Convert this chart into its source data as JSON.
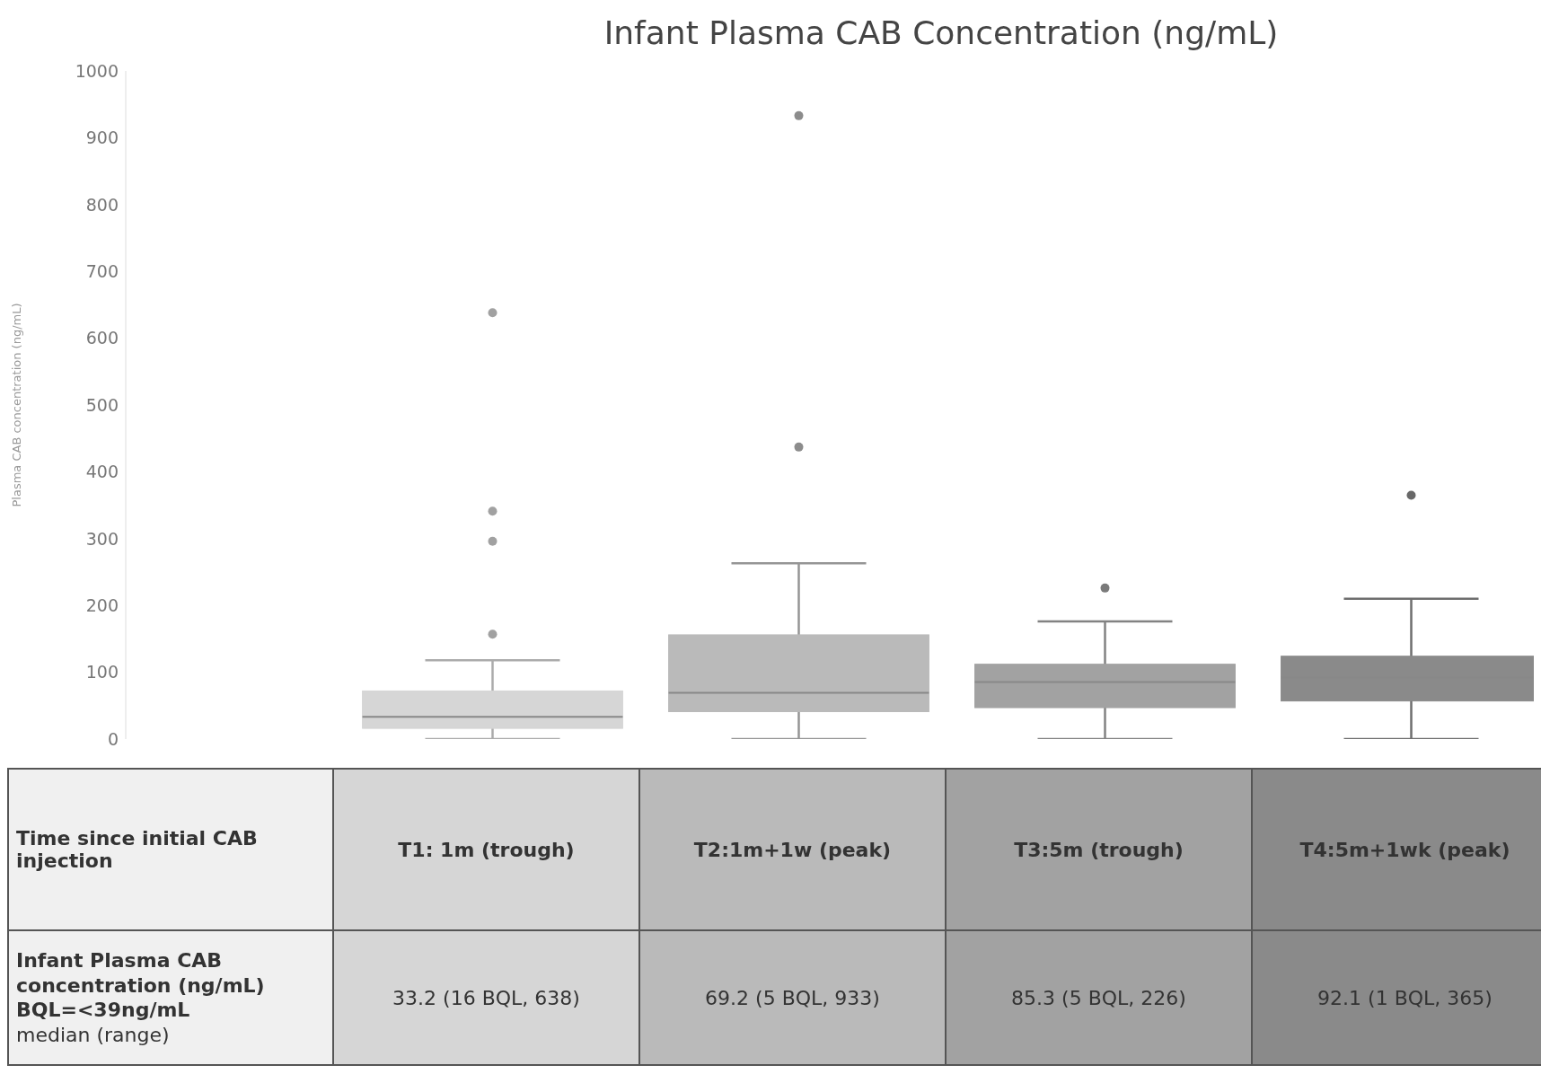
{
  "chart_data": {
    "type": "box",
    "title": "Infant Plasma CAB Concentration (ng/mL)",
    "ylabel": "Plasma CAB concentration (ng/mL)",
    "xlabel": "Time since initial CAB injection",
    "categories": [
      "T1: 1m (trough)",
      "T2:1m+1w (peak)",
      "T3:5m (trough)",
      "T4:5m+1wk (peak)"
    ],
    "boxes": [
      {
        "low": 0,
        "q1": 16,
        "median": 33.2,
        "q3": 72,
        "high": 118,
        "outliers": [
          157,
          296,
          341,
          638
        ]
      },
      {
        "low": 0,
        "q1": 41,
        "median": 69.2,
        "q3": 156,
        "high": 263,
        "outliers": [
          437,
          933
        ]
      },
      {
        "low": 0,
        "q1": 47,
        "median": 85.3,
        "q3": 112,
        "high": 176,
        "outliers": [
          226
        ]
      },
      {
        "low": 0,
        "q1": 57,
        "median": 92.1,
        "q3": 124,
        "high": 210,
        "outliers": [
          365
        ]
      }
    ],
    "colors": [
      "#d6d6d6",
      "#bababa",
      "#a2a2a2",
      "#8a8a8a"
    ],
    "ylim": [
      0,
      1000
    ],
    "yticks": [
      0,
      100,
      200,
      300,
      400,
      500,
      600,
      700,
      800,
      900,
      1000
    ],
    "value_labels": [
      "33.2 (16 BQL, 638)",
      "69.2 (5 BQL, 933)",
      "85.3 (5 BQL, 226)",
      "92.1 (1 BQL, 365)"
    ],
    "annotations": [
      "Infant Plasma CAB concentration (ng/mL) BQL=<39ng/mL",
      "median (range)"
    ]
  }
}
